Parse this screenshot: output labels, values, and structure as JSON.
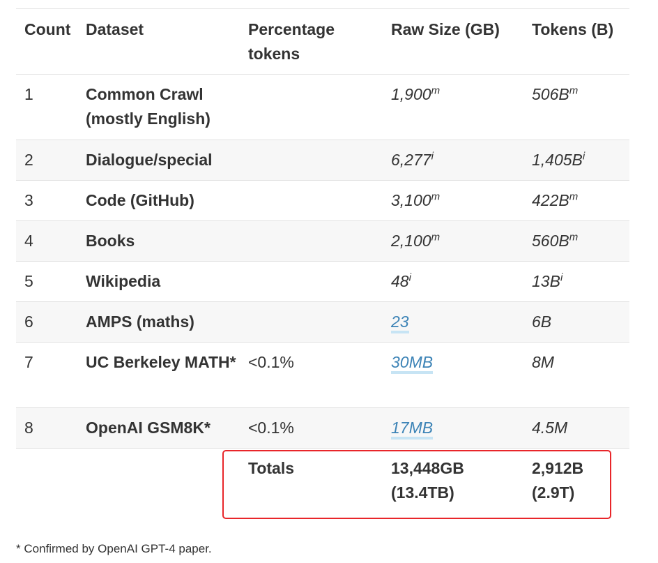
{
  "headers": [
    "Count",
    "Dataset",
    "Percentage tokens",
    "Raw Size (GB)",
    "Tokens (B)"
  ],
  "rows": [
    {
      "count": "1",
      "dataset": "Common Crawl (mostly English)",
      "pct": "",
      "raw": "1,900",
      "raw_sup": "m",
      "tokens": "506B",
      "tokens_sup": "m"
    },
    {
      "count": "2",
      "dataset": "Dialogue/special",
      "pct": "",
      "raw": "6,277",
      "raw_sup": "i",
      "tokens": "1,405B",
      "tokens_sup": "i"
    },
    {
      "count": "3",
      "dataset": "Code (GitHub)",
      "pct": "",
      "raw": "3,100",
      "raw_sup": "m",
      "tokens": "422B",
      "tokens_sup": "m"
    },
    {
      "count": "4",
      "dataset": "Books",
      "pct": "",
      "raw": "2,100",
      "raw_sup": "m",
      "tokens": "560B",
      "tokens_sup": "m"
    },
    {
      "count": "5",
      "dataset": "Wikipedia",
      "pct": "",
      "raw": "48",
      "raw_sup": "i",
      "tokens": "13B",
      "tokens_sup": "i"
    },
    {
      "count": "6",
      "dataset": "AMPS (maths)",
      "pct": "",
      "raw": "23",
      "raw_sup": "",
      "tokens": "6B",
      "tokens_sup": ""
    },
    {
      "count": "7",
      "dataset": "UC Berkeley MATH*",
      "pct": "<0.1%",
      "raw": "30MB",
      "raw_sup": "",
      "tokens": "8M",
      "tokens_sup": ""
    },
    {
      "count": "8",
      "dataset": "OpenAI GSM8K*",
      "pct": "<0.1%",
      "raw": "17MB",
      "raw_sup": "",
      "tokens": "4.5M",
      "tokens_sup": ""
    }
  ],
  "totals": {
    "label": "Totals",
    "raw": "13,448GB (13.4TB)",
    "tokens": "2,912B (2.9T)"
  },
  "footnote": "* Confirmed by OpenAI GPT-4 paper.",
  "colors": {
    "highlight_border": "#e8262a",
    "link": "#3c83b6",
    "link_underline": "#c7e4f4",
    "stripe": "#f7f7f7"
  }
}
